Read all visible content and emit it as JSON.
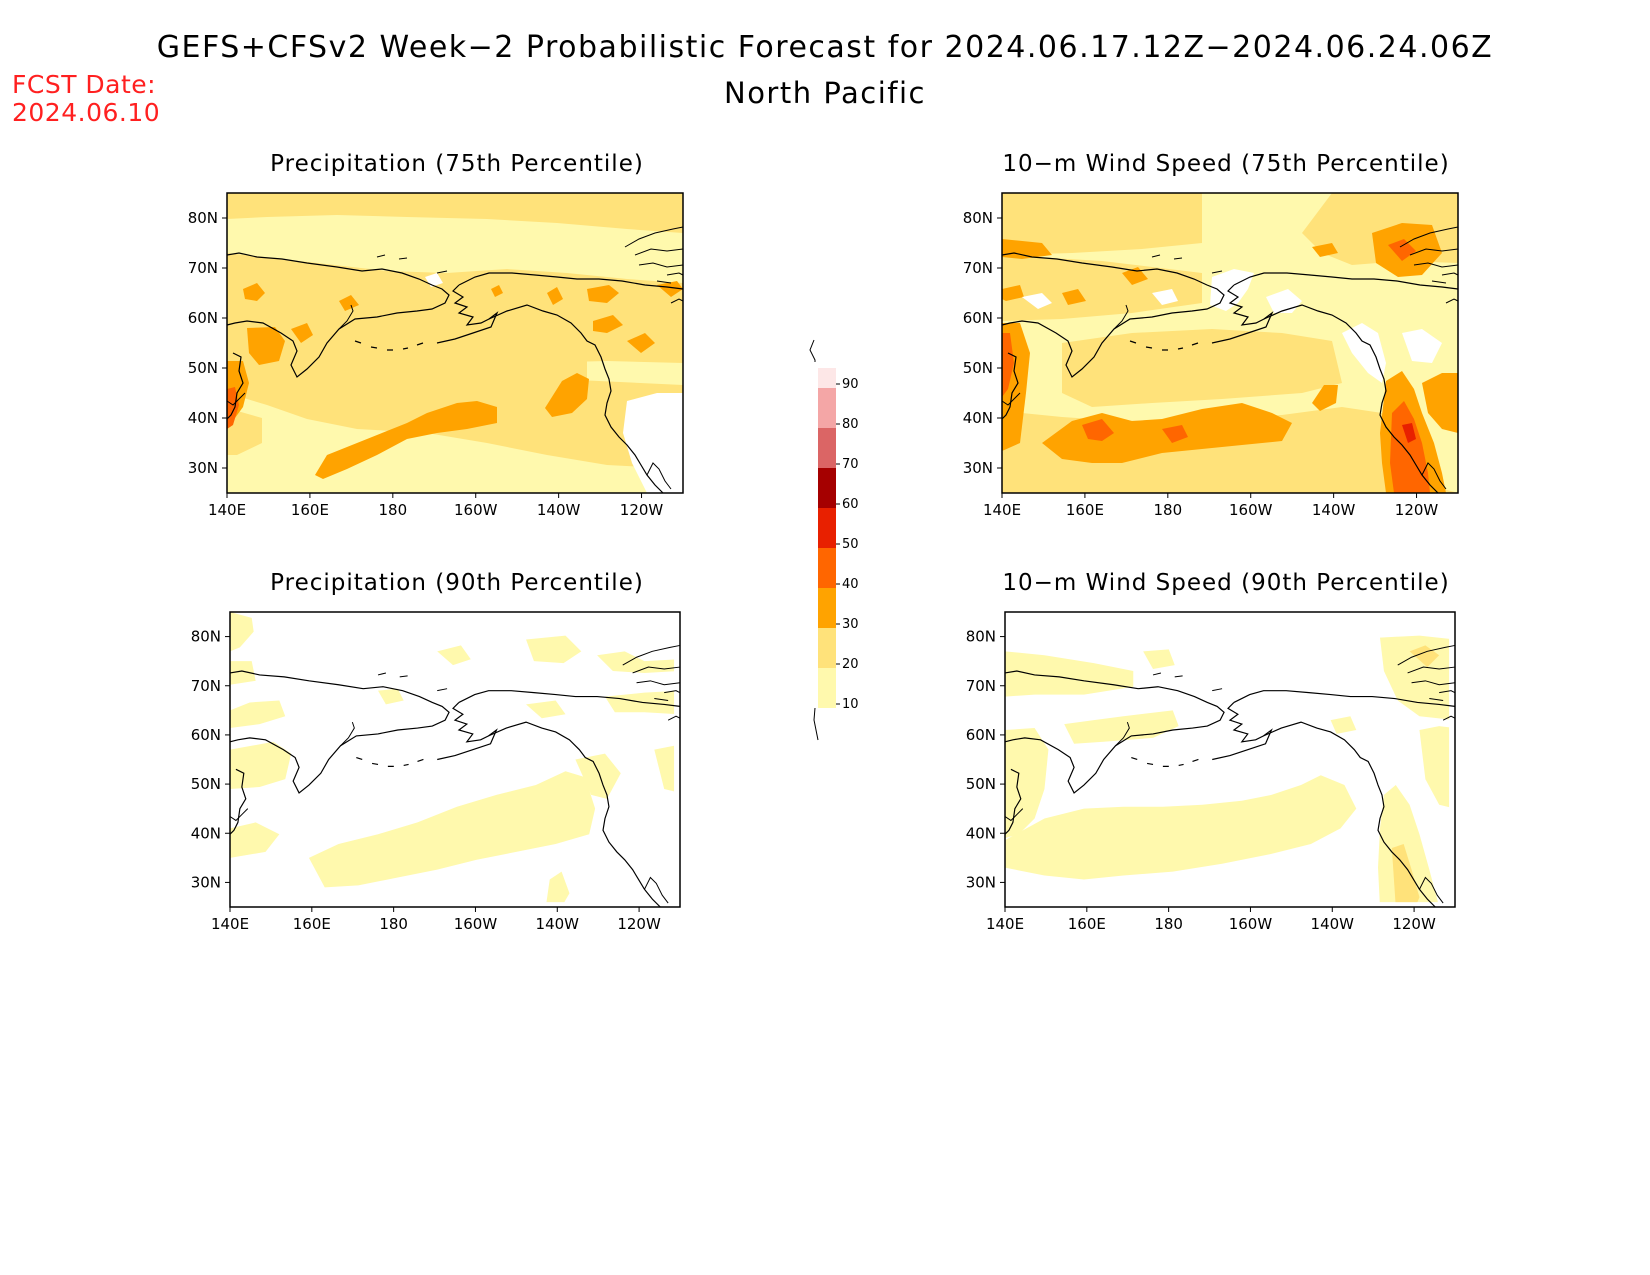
{
  "title": "GEFS+CFSv2 Week−2 Probabilistic Forecast for 2024.06.17.12Z−2024.06.24.06Z",
  "subtitle": "North Pacific",
  "fcst_date_label": "FCST Date:",
  "fcst_date_value": "2024.06.10",
  "panels": [
    {
      "title": "Precipitation (75th Percentile)"
    },
    {
      "title": "10−m Wind Speed (75th Percentile)"
    },
    {
      "title": "Precipitation (90th Percentile)"
    },
    {
      "title": "10−m Wind Speed (90th Percentile)"
    }
  ],
  "axes": {
    "x_ticks": [
      "140E",
      "160E",
      "180",
      "160W",
      "140W",
      "120W"
    ],
    "y_ticks": [
      "80N",
      "70N",
      "60N",
      "50N",
      "40N",
      "30N"
    ],
    "lon_range": [
      140,
      250
    ],
    "lat_range": [
      25,
      85
    ]
  },
  "colorbar": {
    "levels": [
      10,
      20,
      30,
      40,
      50,
      60,
      70,
      80,
      90
    ],
    "colors": [
      "#fff9ad",
      "#ffe27a",
      "#ffa300",
      "#ff6600",
      "#e82000",
      "#a50000",
      "#db6565",
      "#f4a6a6",
      "#fde7e7"
    ]
  }
}
